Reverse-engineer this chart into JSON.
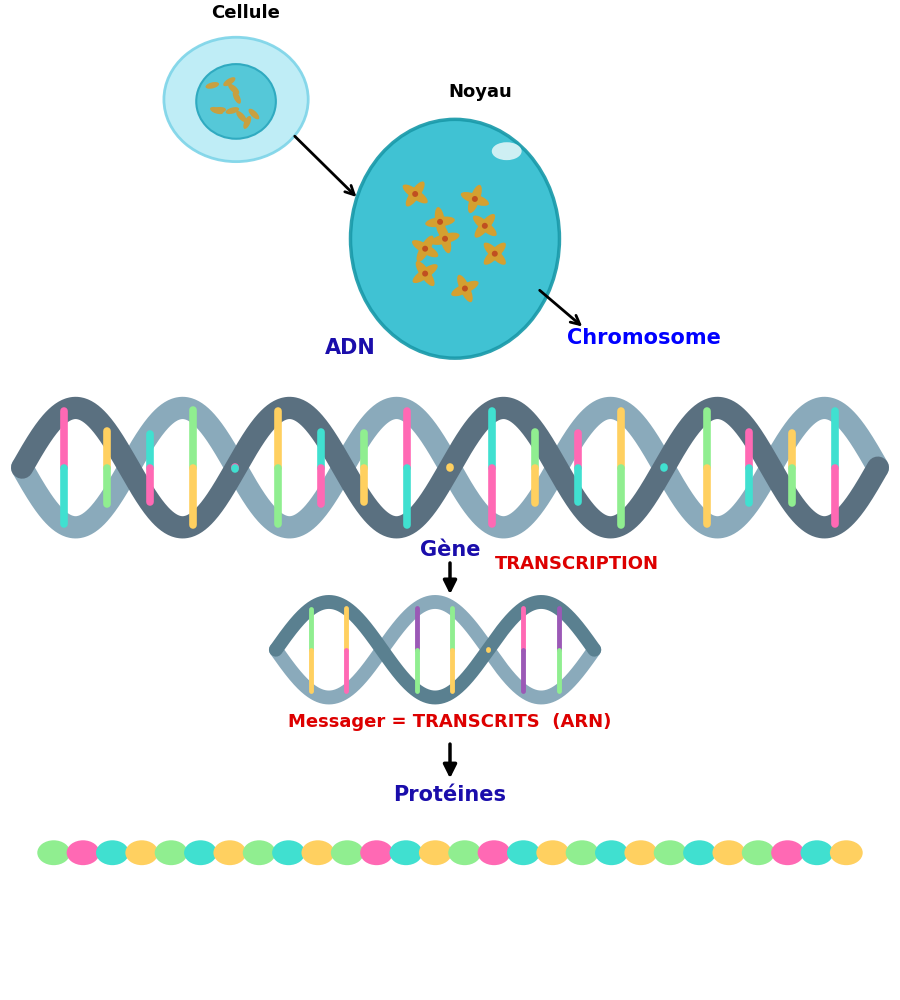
{
  "bg_color": "#ffffff",
  "cellule_label": "Cellule",
  "noyau_label": "Noyau",
  "chromosome_label": "Chromosome",
  "adn_label": "ADN",
  "gene_label": "Gène",
  "transcription_label": "TRANSCRIPTION",
  "messager_label": "Messager = TRANSCRITS  (ARN)",
  "proteines_label": "Protéines",
  "blue_dark": "#1a0dab",
  "blue_bright": "#0000ff",
  "red_label": "#dd0000",
  "black": "#000000",
  "cell_outer_color": "#b8ecf5",
  "cell_outer_edge": "#7dd4e8",
  "cell_inner_color": "#55c8d8",
  "cell_inner_edge": "#30aac0",
  "nucleus_color": "#30bdd0",
  "nucleus_edge": "#1a9aaa",
  "nucleus_highlight": "#ffffff",
  "dna_backbone_color": "#5a7080",
  "dna_backbone_light": "#8aaabb",
  "dna_base_colors": [
    "#90ee90",
    "#ff69b4",
    "#ffd060",
    "#40e0d0"
  ],
  "rna_backbone_color": "#5a8090",
  "rna_base_colors": [
    "#9b59b6",
    "#90ee90",
    "#ffd060",
    "#ff69b4"
  ],
  "protein_colors_map": {
    "green": "#90ee90",
    "pink": "#ff69b4",
    "teal": "#40e0d0",
    "orange": "#ffd060"
  },
  "prot_seq": [
    "green",
    "pink",
    "teal",
    "orange",
    "green",
    "teal",
    "orange",
    "green",
    "teal",
    "orange",
    "green",
    "pink",
    "teal",
    "orange",
    "green",
    "pink",
    "teal",
    "orange",
    "green",
    "teal",
    "orange",
    "green",
    "teal",
    "orange",
    "green",
    "pink",
    "teal",
    "orange"
  ]
}
